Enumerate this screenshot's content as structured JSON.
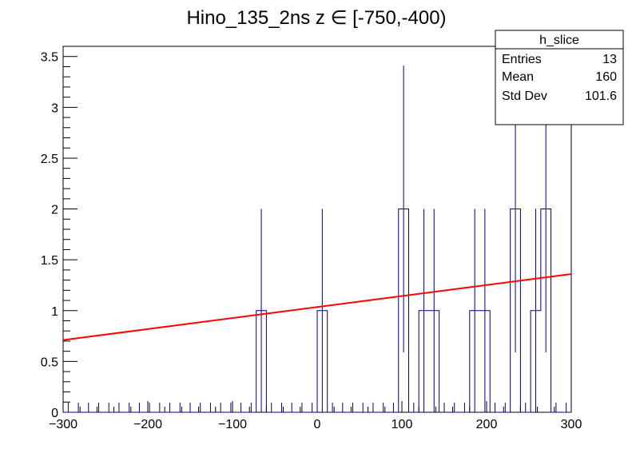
{
  "chart_data": {
    "type": "histogram",
    "title": "Hino_135_2ns z  ∈ [-750,-400)",
    "xlabel": "",
    "ylabel": "",
    "xlim": [
      -300,
      300
    ],
    "ylim": [
      0,
      3.6
    ],
    "x_ticks": [
      "−300",
      "−200",
      "−100",
      "0",
      "100",
      "200",
      "300"
    ],
    "y_ticks": [
      "0",
      "0.5",
      "1",
      "1.5",
      "2",
      "2.5",
      "3",
      "3.5"
    ],
    "bin_width": 12,
    "bins": [
      {
        "x": -66,
        "value": 1,
        "error": 1.0
      },
      {
        "x": 6,
        "value": 1,
        "error": 1.0
      },
      {
        "x": 102,
        "value": 2,
        "error": 1.41
      },
      {
        "x": 126,
        "value": 1,
        "error": 1.0
      },
      {
        "x": 138,
        "value": 1,
        "error": 1.0
      },
      {
        "x": 186,
        "value": 1,
        "error": 1.0
      },
      {
        "x": 198,
        "value": 1,
        "error": 1.0
      },
      {
        "x": 234,
        "value": 2,
        "error": 1.41
      },
      {
        "x": 258,
        "value": 1,
        "error": 1.0
      },
      {
        "x": 270,
        "value": 2,
        "error": 1.41
      }
    ],
    "fit": {
      "x": [
        -300,
        300
      ],
      "y": [
        0.71,
        1.36
      ],
      "color": "#ff0000"
    },
    "hist_color": "#000080",
    "grid": false,
    "stats_box": {
      "name": "h_slice",
      "rows": [
        {
          "label": "Entries",
          "value": "13"
        },
        {
          "label": "Mean",
          "value": "160"
        },
        {
          "label": "Std Dev",
          "value": "101.6"
        }
      ]
    }
  }
}
